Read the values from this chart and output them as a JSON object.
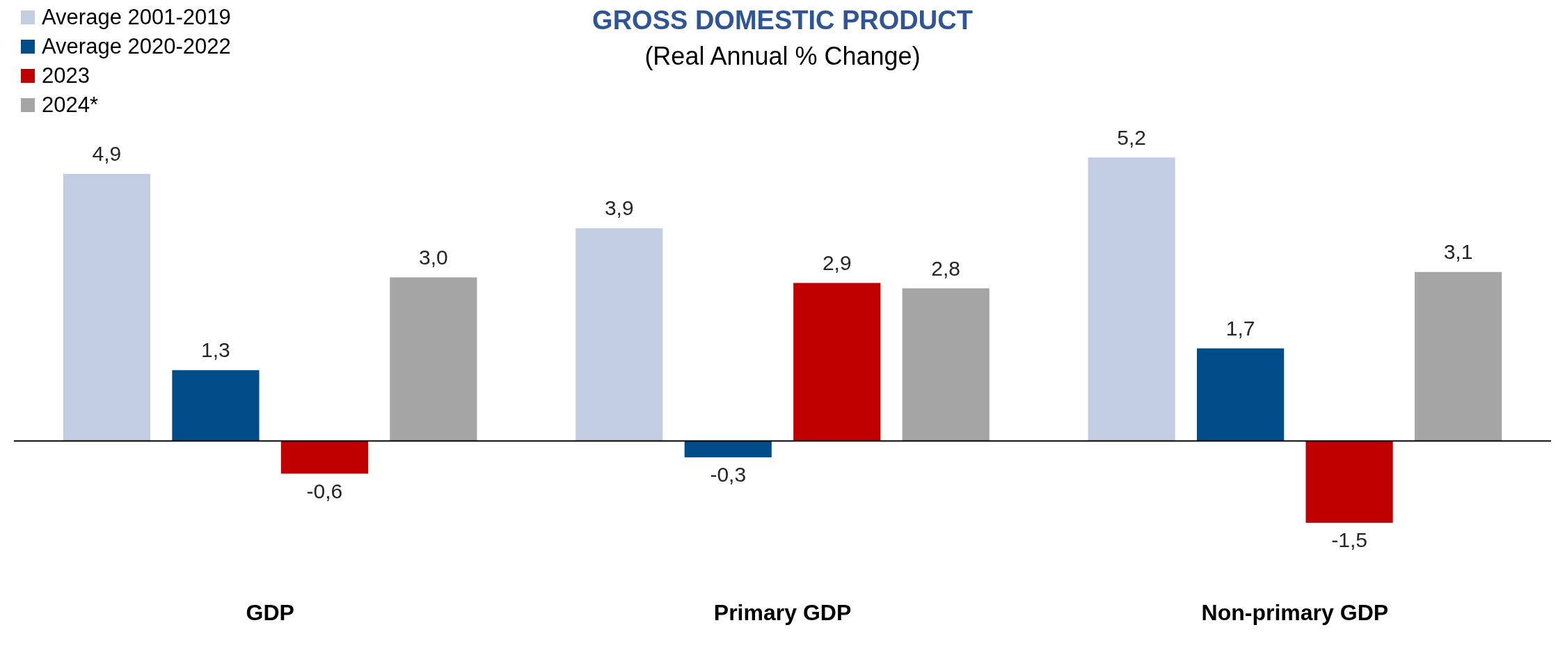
{
  "chart_data": {
    "type": "bar",
    "title": "GROSS DOMESTIC PRODUCT",
    "subtitle": "(Real Annual % Change)",
    "categories": [
      "GDP",
      "Primary GDP",
      "Non-primary GDP"
    ],
    "series": [
      {
        "name": "Average 2001-2019",
        "color": "#c3cde1",
        "values": [
          4.9,
          3.9,
          5.2
        ],
        "value_labels": [
          "4,9",
          "3,9",
          "5,2"
        ]
      },
      {
        "name": "Average 2020-2022",
        "color": "#004c88",
        "values": [
          1.3,
          -0.3,
          1.7
        ],
        "value_labels": [
          "1,3",
          "-0,3",
          "1,7"
        ]
      },
      {
        "name": "2023",
        "color": "#c00000",
        "values": [
          -0.6,
          2.9,
          -1.5
        ],
        "value_labels": [
          "-0,6",
          "2,9",
          "-1,5"
        ]
      },
      {
        "name": "2024*",
        "color": "#a5a5a5",
        "values": [
          3.0,
          2.8,
          3.1
        ],
        "value_labels": [
          "3,0",
          "2,8",
          "3,1"
        ]
      }
    ],
    "legend": "top left"
  }
}
